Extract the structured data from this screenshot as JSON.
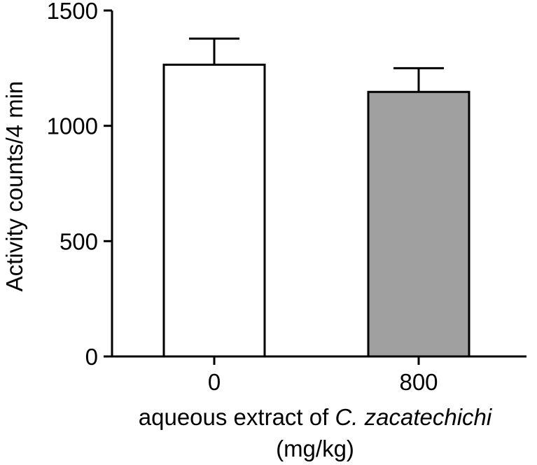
{
  "chart_data": {
    "type": "bar",
    "categories": [
      "0",
      "800"
    ],
    "values": [
      1265,
      1147
    ],
    "errors": [
      113,
      103
    ],
    "bar_colors": [
      "#ffffff",
      "#a0a0a0"
    ],
    "ylim": [
      0,
      1500
    ],
    "yticks": [
      {
        "value": 0,
        "label": "0"
      },
      {
        "value": 500,
        "label": "500"
      },
      {
        "value": 1000,
        "label": "1000"
      },
      {
        "value": 1500,
        "label": "1500"
      }
    ],
    "ylabel": "Activity counts/4 min",
    "xlabel_main": "aqueous extract of ",
    "xlabel_italic": "C. zacatechichi",
    "xlabel_units": "(mg/kg)",
    "grid": false
  }
}
